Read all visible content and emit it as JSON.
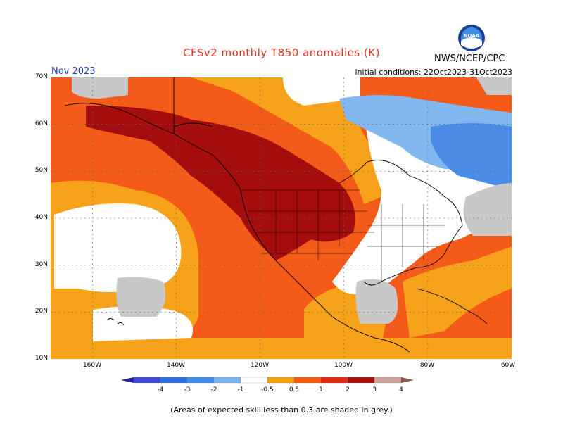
{
  "header": {
    "title": "CFSv2 monthly T850 anomalies (K)",
    "month": "Nov 2023",
    "init_conditions": "initial conditions: 22Oct2023-31Oct2023",
    "agency": "NWS/NCEP/CPC",
    "logo_text": "NOAA"
  },
  "axes": {
    "lat_labels": [
      "70N",
      "60N",
      "50N",
      "40N",
      "30N",
      "20N",
      "10N"
    ],
    "lon_labels": [
      "160W",
      "140W",
      "120W",
      "100W",
      "80W",
      "60W"
    ],
    "lat_range": [
      10,
      70
    ],
    "lon_range": [
      -170,
      -60
    ]
  },
  "colorbar": {
    "labels": [
      "-4",
      "-3",
      "-2",
      "-1",
      "-0.5",
      "0.5",
      "1",
      "2",
      "3",
      "4"
    ],
    "colors": [
      "#2d1b9e",
      "#3a4bcf",
      "#2f6fdc",
      "#3f8fe8",
      "#7ab4ef",
      "#ffffff",
      "#f5a20f",
      "#f25a10",
      "#e22a12",
      "#a80c0c",
      "#c9a39a",
      "#8a5a4a"
    ]
  },
  "legend_colors": {
    "low_skill": "#c8c8c8",
    "warm_light": "#f7a21b",
    "warm": "#f45a18",
    "warm_strong": "#e73a1c",
    "warm_extreme": "#a40d0d",
    "cool_light": "#80b8ef",
    "cool": "#4a8de6",
    "neutral": "#ffffff"
  },
  "footnote": "(Areas of expected skill less than 0.3 are shaded in grey.)"
}
